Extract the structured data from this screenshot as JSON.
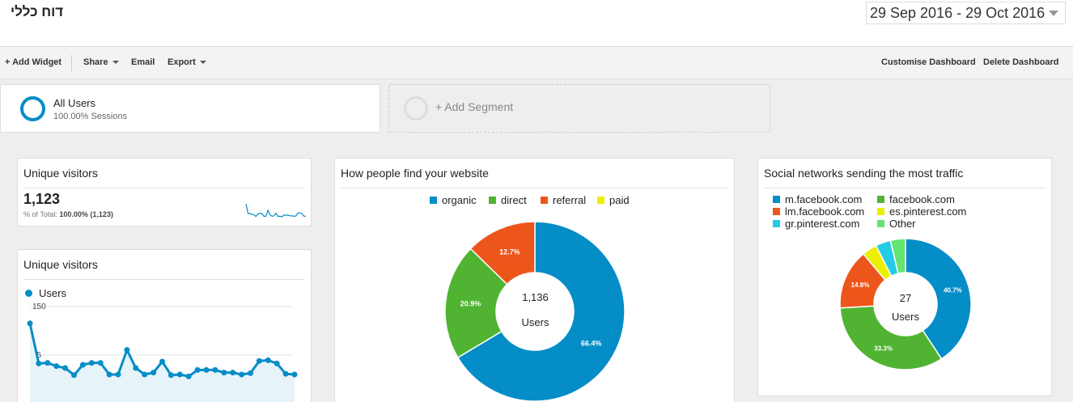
{
  "header": {
    "title": "דוח כללי",
    "date_range": "29 Sep 2016 - 29 Oct 2016"
  },
  "toolbar": {
    "add_widget": "+ Add Widget",
    "share": "Share",
    "email": "Email",
    "export": "Export",
    "customise": "Customise Dashboard",
    "delete": "Delete Dashboard"
  },
  "segments": {
    "active": {
      "name": "All Users",
      "sub": "100.00% Sessions"
    },
    "add_label": "+ Add Segment"
  },
  "widgets": {
    "scorecard": {
      "title": "Unique visitors",
      "value": "1,123",
      "pct_prefix": "% of Total:",
      "pct_value": "100.00% (1,123)"
    },
    "timeline": {
      "title": "Unique visitors",
      "legend": "Users",
      "color": "#058dc7"
    },
    "traffic": {
      "title": "How people find your website",
      "center_value": "1,136",
      "center_label": "Users"
    },
    "social": {
      "title": "Social networks sending the most traffic",
      "center_value": "27",
      "center_label": "Users"
    }
  },
  "chart_data": [
    {
      "type": "line",
      "title": "Unique visitors",
      "series": [
        {
          "name": "Users",
          "values": [
            124,
            62,
            63,
            58,
            55,
            44,
            60,
            63,
            63,
            45,
            45,
            83,
            55,
            45,
            48,
            65,
            44,
            45,
            42,
            52,
            52,
            52,
            48,
            48,
            45,
            47,
            66,
            67,
            62,
            46,
            45
          ]
        }
      ],
      "y_ticks": [
        "150",
        "75"
      ],
      "ylim": [
        0,
        150
      ],
      "grid": true
    },
    {
      "type": "pie",
      "title": "How people find your website",
      "labels": [
        "organic",
        "direct",
        "referral",
        "paid"
      ],
      "values": [
        66.4,
        20.9,
        12.7,
        0
      ],
      "value_labels": [
        "66.4%",
        "20.9%",
        "12.7%",
        ""
      ],
      "colors": [
        "#058dc7",
        "#50b432",
        "#ed561b",
        "#edef00"
      ]
    },
    {
      "type": "pie",
      "title": "Social networks sending the most traffic",
      "labels": [
        "m.facebook.com",
        "facebook.com",
        "lm.facebook.com",
        "es.pinterest.com",
        "gr.pinterest.com",
        "Other"
      ],
      "values": [
        40.7,
        33.3,
        14.8,
        3.7,
        3.7,
        3.7
      ],
      "value_labels": [
        "40.7%",
        "33.3%",
        "14.8%",
        "",
        "",
        ""
      ],
      "colors": [
        "#058dc7",
        "#50b432",
        "#ed561b",
        "#edef00",
        "#24cbe5",
        "#64e572"
      ]
    }
  ]
}
